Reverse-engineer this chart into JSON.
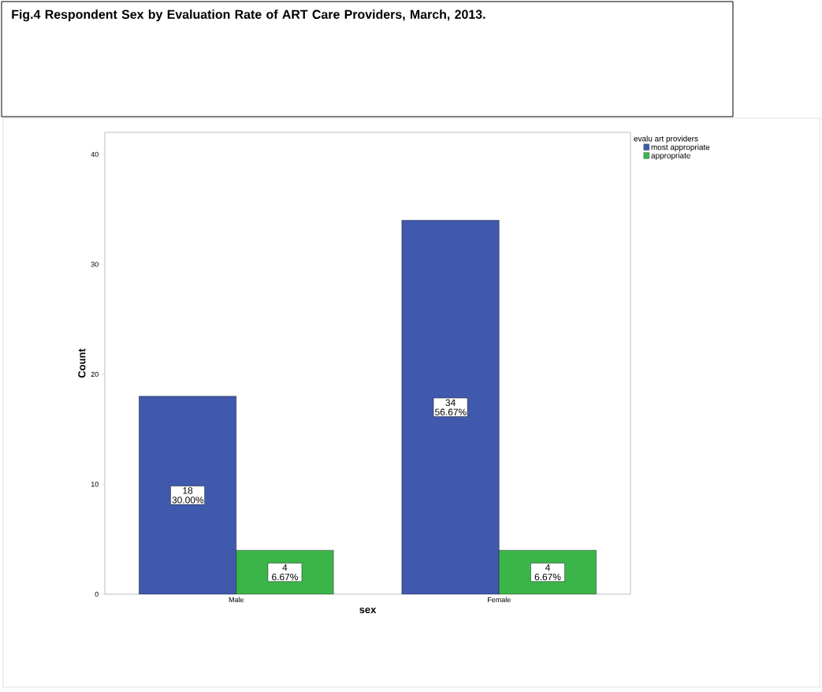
{
  "chart_data": {
    "type": "bar",
    "title": "Fig.4 Respondent Sex by Evaluation Rate of ART Care Providers, March, 2013.",
    "xlabel": "sex",
    "ylabel": "Count",
    "legend_title": "evalu art providers",
    "categories": [
      "Male",
      "Female"
    ],
    "series": [
      {
        "name": "most appropriate",
        "color": "#4059ad",
        "values": [
          18,
          34
        ],
        "value_labels": [
          "18 30.00%",
          "34 56.67%"
        ]
      },
      {
        "name": "appropriate",
        "color": "#3bb44a",
        "values": [
          4,
          4
        ],
        "value_labels": [
          "4 6.67%",
          "4 6.67%"
        ]
      }
    ],
    "ylim": [
      0,
      42
    ],
    "yticks": [
      0,
      10,
      20,
      30,
      40
    ],
    "grid": false,
    "legend": "top right"
  }
}
